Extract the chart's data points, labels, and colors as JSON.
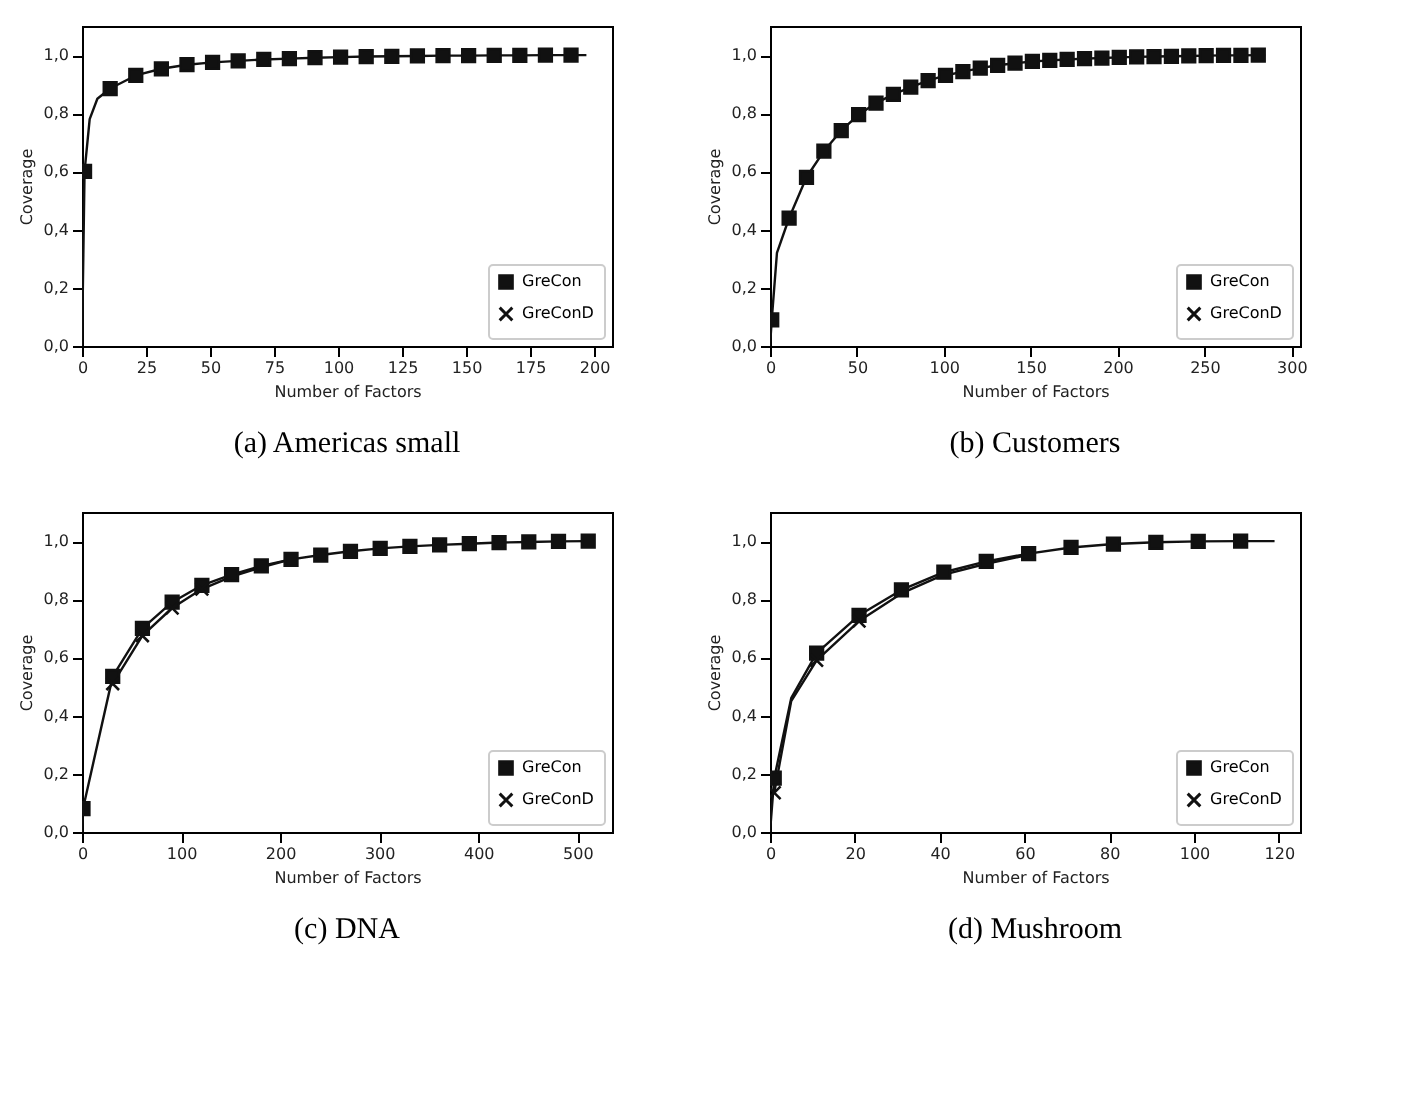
{
  "chart_data": [
    {
      "type": "line",
      "title": "(a) Americas small",
      "xlabel": "Number of Factors",
      "ylabel": "Coverage",
      "xlim": [
        0,
        207
      ],
      "xticks": [
        0,
        25,
        50,
        75,
        100,
        125,
        150,
        175,
        200
      ],
      "ylim": [
        0,
        1.1
      ],
      "yticks": [
        {
          "value": 0,
          "label": "0,0"
        },
        {
          "value": 0.2,
          "label": "0,2"
        },
        {
          "value": 0.4,
          "label": "0,4"
        },
        {
          "value": 0.6,
          "label": "0,6"
        },
        {
          "value": 0.8,
          "label": "0,8"
        },
        {
          "value": 1,
          "label": "1,0"
        }
      ],
      "legend": "bottom right",
      "grid": false,
      "series": [
        {
          "marker": "none",
          "color": "#111111",
          "x": [
            0,
            1,
            3,
            6,
            11,
            21,
            31,
            41,
            51,
            61,
            71,
            81,
            91,
            101,
            111,
            121,
            131,
            141,
            151,
            161,
            171,
            181,
            191,
            197
          ],
          "values": [
            0,
            0.6,
            0.78,
            0.85,
            0.885,
            0.93,
            0.953,
            0.967,
            0.975,
            0.98,
            0.985,
            0.988,
            0.991,
            0.993,
            0.995,
            0.996,
            0.997,
            0.998,
            0.998,
            0.999,
            0.999,
            1.0,
            1.0,
            1.0
          ]
        },
        {
          "type": "scatter",
          "name": "GreCon",
          "marker": "square",
          "color": "#111111",
          "x": [
            1,
            11,
            21,
            31,
            41,
            51,
            61,
            71,
            81,
            91,
            101,
            111,
            121,
            131,
            141,
            151,
            161,
            171,
            181,
            191
          ],
          "values": [
            0.6,
            0.885,
            0.93,
            0.953,
            0.967,
            0.975,
            0.98,
            0.985,
            0.988,
            0.991,
            0.993,
            0.995,
            0.996,
            0.997,
            0.998,
            0.998,
            0.999,
            0.999,
            1.0,
            1.0
          ]
        },
        {
          "type": "scatter",
          "name": "GreConD",
          "marker": "cross",
          "color": "#111111"
        }
      ]
    },
    {
      "type": "line",
      "title": "(b) Customers",
      "xlabel": "Number of Factors",
      "ylabel": "Coverage",
      "xlim": [
        0,
        305
      ],
      "xticks": [
        0,
        50,
        100,
        150,
        200,
        250,
        300
      ],
      "ylim": [
        0,
        1.1
      ],
      "yticks": [
        {
          "value": 0,
          "label": "0,0"
        },
        {
          "value": 0.2,
          "label": "0,2"
        },
        {
          "value": 0.4,
          "label": "0,4"
        },
        {
          "value": 0.6,
          "label": "0,6"
        },
        {
          "value": 0.8,
          "label": "0,8"
        },
        {
          "value": 1,
          "label": "1,0"
        }
      ],
      "legend": "bottom right",
      "grid": false,
      "series": [
        {
          "marker": "none",
          "color": "#111111",
          "x": [
            0,
            1,
            4,
            11,
            21,
            31,
            41,
            51,
            61,
            71,
            81,
            91,
            101,
            111,
            121,
            131,
            141,
            151,
            161,
            171,
            181,
            191,
            201,
            211,
            221,
            231,
            241,
            251,
            261,
            271,
            281,
            285
          ],
          "values": [
            0,
            0.09,
            0.32,
            0.44,
            0.58,
            0.67,
            0.74,
            0.795,
            0.835,
            0.865,
            0.89,
            0.912,
            0.93,
            0.943,
            0.955,
            0.965,
            0.972,
            0.978,
            0.982,
            0.985,
            0.988,
            0.99,
            0.992,
            0.994,
            0.995,
            0.996,
            0.997,
            0.998,
            0.999,
            0.999,
            1.0,
            1.0
          ]
        },
        {
          "type": "scatter",
          "name": "GreCon",
          "marker": "square",
          "color": "#111111",
          "x": [
            1,
            11,
            21,
            31,
            41,
            51,
            61,
            71,
            81,
            91,
            101,
            111,
            121,
            131,
            141,
            151,
            161,
            171,
            181,
            191,
            201,
            211,
            221,
            231,
            241,
            251,
            261,
            271,
            281
          ],
          "values": [
            0.09,
            0.44,
            0.58,
            0.67,
            0.74,
            0.795,
            0.835,
            0.865,
            0.89,
            0.912,
            0.93,
            0.943,
            0.955,
            0.965,
            0.972,
            0.978,
            0.982,
            0.985,
            0.988,
            0.99,
            0.992,
            0.994,
            0.995,
            0.996,
            0.997,
            0.998,
            0.999,
            0.999,
            1.0
          ]
        },
        {
          "type": "scatter",
          "name": "GreConD",
          "marker": "cross",
          "color": "#111111"
        }
      ]
    },
    {
      "type": "line",
      "title": "(c) DNA",
      "xlabel": "Number of Factors",
      "ylabel": "Coverage",
      "xlim": [
        0,
        535
      ],
      "xticks": [
        0,
        100,
        200,
        300,
        400,
        500
      ],
      "ylim": [
        0,
        1.1
      ],
      "yticks": [
        {
          "value": 0,
          "label": "0,0"
        },
        {
          "value": 0.2,
          "label": "0,2"
        },
        {
          "value": 0.4,
          "label": "0,4"
        },
        {
          "value": 0.6,
          "label": "0,6"
        },
        {
          "value": 0.8,
          "label": "0,8"
        },
        {
          "value": 1,
          "label": "1,0"
        }
      ],
      "legend": "bottom right",
      "grid": false,
      "series": [
        {
          "marker": "none",
          "color": "#111111",
          "x": [
            0,
            1,
            31,
            61,
            91,
            121,
            151,
            181,
            211,
            241,
            271,
            301,
            331,
            361,
            391,
            421,
            451,
            481,
            511,
            516
          ],
          "values": [
            0,
            0.08,
            0.535,
            0.7,
            0.79,
            0.848,
            0.885,
            0.915,
            0.937,
            0.952,
            0.965,
            0.975,
            0.982,
            0.987,
            0.991,
            0.995,
            0.997,
            0.999,
            1.0,
            1.0
          ]
        },
        {
          "marker": "none",
          "color": "#111111",
          "x": [
            31,
            61,
            91,
            121,
            151,
            181,
            211
          ],
          "values": [
            0.51,
            0.675,
            0.77,
            0.835,
            0.878,
            0.91,
            0.937
          ]
        },
        {
          "type": "scatter",
          "name": "GreCon",
          "marker": "square",
          "color": "#111111",
          "x": [
            1,
            31,
            61,
            91,
            121,
            151,
            181,
            211,
            241,
            271,
            301,
            331,
            361,
            391,
            421,
            451,
            481,
            511
          ],
          "values": [
            0.08,
            0.535,
            0.7,
            0.79,
            0.848,
            0.885,
            0.915,
            0.937,
            0.952,
            0.965,
            0.975,
            0.982,
            0.987,
            0.991,
            0.995,
            0.997,
            0.999,
            1.0
          ]
        },
        {
          "type": "scatter",
          "name": "GreConD",
          "marker": "cross",
          "color": "#111111",
          "x": [
            31,
            61,
            91,
            121
          ],
          "values": [
            0.51,
            0.675,
            0.77,
            0.835
          ]
        }
      ]
    },
    {
      "type": "line",
      "title": "(d) Mushroom",
      "xlabel": "Number of Factors",
      "ylabel": "Coverage",
      "xlim": [
        0,
        125
      ],
      "xticks": [
        0,
        20,
        40,
        60,
        80,
        100,
        120
      ],
      "ylim": [
        0,
        1.1
      ],
      "yticks": [
        {
          "value": 0,
          "label": "0,0"
        },
        {
          "value": 0.2,
          "label": "0,2"
        },
        {
          "value": 0.4,
          "label": "0,4"
        },
        {
          "value": 0.6,
          "label": "0,6"
        },
        {
          "value": 0.8,
          "label": "0,8"
        },
        {
          "value": 1,
          "label": "1,0"
        }
      ],
      "legend": "bottom right",
      "grid": false,
      "series": [
        {
          "marker": "none",
          "color": "#111111",
          "x": [
            0,
            1,
            5,
            11,
            21,
            31,
            41,
            51,
            61,
            71,
            81,
            91,
            101,
            111,
            119
          ],
          "values": [
            0,
            0.185,
            0.46,
            0.615,
            0.745,
            0.832,
            0.893,
            0.93,
            0.957,
            0.978,
            0.99,
            0.996,
            0.999,
            1.0,
            1.0
          ]
        },
        {
          "marker": "none",
          "color": "#111111",
          "x": [
            1,
            5,
            11,
            21,
            31,
            41,
            51,
            61
          ],
          "values": [
            0.135,
            0.45,
            0.59,
            0.725,
            0.82,
            0.885,
            0.922,
            0.953
          ]
        },
        {
          "type": "scatter",
          "name": "GreCon",
          "marker": "square",
          "color": "#111111",
          "x": [
            1,
            11,
            21,
            31,
            41,
            51,
            61,
            71,
            81,
            91,
            101,
            111
          ],
          "values": [
            0.185,
            0.615,
            0.745,
            0.832,
            0.893,
            0.93,
            0.957,
            0.978,
            0.99,
            0.996,
            0.999,
            1.0
          ]
        },
        {
          "type": "scatter",
          "name": "GreConD",
          "marker": "cross",
          "color": "#111111",
          "x": [
            1,
            11,
            21
          ],
          "values": [
            0.135,
            0.59,
            0.725
          ]
        }
      ]
    }
  ]
}
